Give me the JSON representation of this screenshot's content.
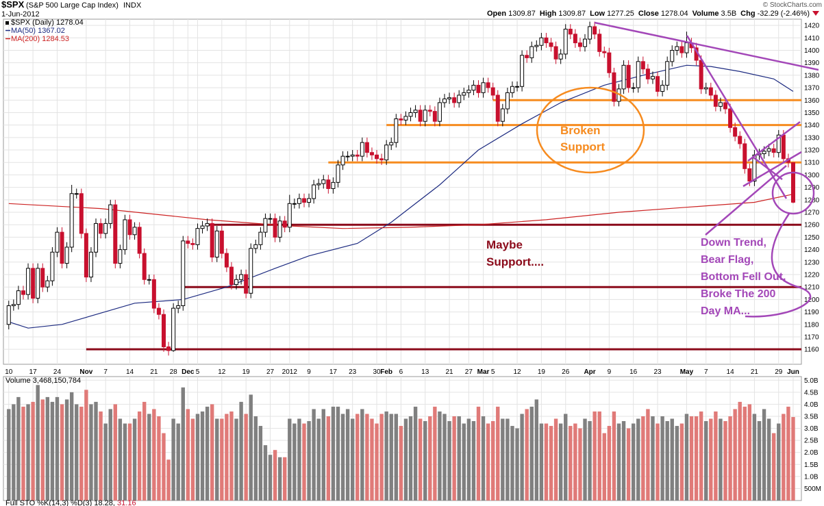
{
  "chart_data": {
    "type": "candlestick",
    "title": "$SPX",
    "subtitle": "(S&P 500 Large Cap Index)",
    "exchange": "INDX",
    "date": "1-Jun-2012",
    "credit": "© StockCharts.com",
    "quote": [
      {
        "label": "Open",
        "value": 1309.87
      },
      {
        "label": "High",
        "value": 1309.87
      },
      {
        "label": "Low",
        "value": 1277.25
      },
      {
        "label": "Close",
        "value": 1278.04
      },
      {
        "label": "Volume",
        "value": 3.5,
        "value_label": "3.5B"
      },
      {
        "label": "Chg",
        "value": -32.29,
        "value_label": "-32.29 (-2.46%)"
      }
    ],
    "price_name": "$SPX (Daily)",
    "up_color": "#000000",
    "down_color": "#c8102e",
    "xlim": [
      -1.1,
      163.7
    ],
    "ylim": [
      1148,
      1425
    ],
    "grid": true,
    "xticks": [
      {
        "value": 0,
        "label": "10"
      },
      {
        "value": 5,
        "label": "17"
      },
      {
        "value": 10,
        "label": "24"
      },
      {
        "value": 16,
        "label": "Nov"
      },
      {
        "value": 20,
        "label": "7"
      },
      {
        "value": 25,
        "label": "14"
      },
      {
        "value": 30,
        "label": "21"
      },
      {
        "value": 34,
        "label": "28"
      },
      {
        "value": 37,
        "label": "Dec"
      },
      {
        "value": 39,
        "label": "5"
      },
      {
        "value": 44,
        "label": "12"
      },
      {
        "value": 49,
        "label": "19"
      },
      {
        "value": 54,
        "label": "27"
      },
      {
        "value": 58,
        "label": "2012"
      },
      {
        "value": 62,
        "label": "9"
      },
      {
        "value": 67,
        "label": "17"
      },
      {
        "value": 71,
        "label": "23"
      },
      {
        "value": 76,
        "label": "30"
      },
      {
        "value": 78,
        "label": "Feb"
      },
      {
        "value": 81,
        "label": "6"
      },
      {
        "value": 86,
        "label": "13"
      },
      {
        "value": 91,
        "label": "21"
      },
      {
        "value": 95,
        "label": "27"
      },
      {
        "value": 98,
        "label": "Mar"
      },
      {
        "value": 100,
        "label": "5"
      },
      {
        "value": 105,
        "label": "12"
      },
      {
        "value": 110,
        "label": "19"
      },
      {
        "value": 115,
        "label": "26"
      },
      {
        "value": 120,
        "label": "Apr"
      },
      {
        "value": 124,
        "label": "9"
      },
      {
        "value": 129,
        "label": "16"
      },
      {
        "value": 134,
        "label": "23"
      },
      {
        "value": 140,
        "label": "May"
      },
      {
        "value": 144,
        "label": "7"
      },
      {
        "value": 149,
        "label": "14"
      },
      {
        "value": 154,
        "label": "21"
      },
      {
        "value": 159,
        "label": "29"
      },
      {
        "value": 162,
        "label": "Jun"
      }
    ],
    "yticks": [
      1160,
      1170,
      1180,
      1190,
      1200,
      1210,
      1220,
      1230,
      1240,
      1250,
      1260,
      1270,
      1280,
      1290,
      1300,
      1310,
      1320,
      1330,
      1340,
      1350,
      1360,
      1370,
      1380,
      1390,
      1400,
      1410,
      1420
    ],
    "open": [
      1180,
      1195,
      1196,
      1207,
      1204,
      1225,
      1201,
      1225,
      1210,
      1215,
      1238,
      1254,
      1229,
      1242,
      1285,
      1285,
      1253,
      1218,
      1238,
      1261,
      1253,
      1261,
      1276,
      1229,
      1240,
      1264,
      1252,
      1258,
      1237,
      1216,
      1216,
      1193,
      1188,
      1162,
      1159,
      1193,
      1195,
      1247,
      1245,
      1244,
      1257,
      1259,
      1261,
      1234,
      1255,
      1237,
      1226,
      1212,
      1216,
      1220,
      1205,
      1241,
      1244,
      1254,
      1265,
      1265,
      1250,
      1263,
      1258,
      1277,
      1277,
      1281,
      1278,
      1281,
      1292,
      1293,
      1296,
      1289,
      1294,
      1308,
      1315,
      1315,
      1316,
      1315,
      1326,
      1318,
      1316,
      1313,
      1312,
      1324,
      1326,
      1345,
      1344,
      1347,
      1350,
      1352,
      1343,
      1352,
      1351,
      1343,
      1358,
      1361,
      1362,
      1358,
      1364,
      1366,
      1368,
      1372,
      1366,
      1374,
      1370,
      1364,
      1343,
      1353,
      1366,
      1371,
      1371,
      1396,
      1394,
      1403,
      1404,
      1410,
      1406,
      1403,
      1393,
      1397,
      1417,
      1413,
      1406,
      1403,
      1409,
      1419,
      1413,
      1399,
      1398,
      1382,
      1359,
      1369,
      1388,
      1370,
      1370,
      1391,
      1385,
      1377,
      1379,
      1367,
      1372,
      1391,
      1400,
      1403,
      1398,
      1406,
      1402,
      1392,
      1369,
      1370,
      1364,
      1355,
      1358,
      1353,
      1338,
      1331,
      1325,
      1305,
      1295,
      1316,
      1317,
      1319,
      1321,
      1318,
      1332,
      1313,
      1309.87
    ],
    "high": [
      1199,
      1200,
      1211,
      1211,
      1229,
      1229,
      1229,
      1229,
      1219,
      1242,
      1258,
      1258,
      1246,
      1292,
      1289,
      1289,
      1257,
      1242,
      1265,
      1265,
      1265,
      1280,
      1280,
      1244,
      1268,
      1268,
      1262,
      1262,
      1241,
      1220,
      1220,
      1197,
      1192,
      1166,
      1197,
      1199,
      1251,
      1251,
      1249,
      1261,
      1263,
      1265,
      1265,
      1259,
      1259,
      1241,
      1230,
      1220,
      1224,
      1224,
      1245,
      1248,
      1258,
      1269,
      1269,
      1269,
      1267,
      1267,
      1284,
      1281,
      1285,
      1285,
      1285,
      1296,
      1297,
      1300,
      1300,
      1298,
      1312,
      1319,
      1319,
      1320,
      1320,
      1330,
      1330,
      1322,
      1320,
      1317,
      1328,
      1330,
      1349,
      1349,
      1351,
      1354,
      1356,
      1356,
      1356,
      1356,
      1355,
      1362,
      1365,
      1366,
      1366,
      1368,
      1370,
      1372,
      1376,
      1376,
      1378,
      1378,
      1374,
      1368,
      1357,
      1370,
      1375,
      1375,
      1400,
      1400,
      1407,
      1408,
      1414,
      1414,
      1410,
      1407,
      1401,
      1421,
      1421,
      1417,
      1410,
      1413,
      1423,
      1423,
      1417,
      1403,
      1402,
      1386,
      1373,
      1392,
      1392,
      1374,
      1395,
      1395,
      1389,
      1383,
      1383,
      1376,
      1395,
      1404,
      1407,
      1407,
      1415,
      1410,
      1406,
      1396,
      1374,
      1374,
      1368,
      1362,
      1362,
      1357,
      1342,
      1335,
      1329,
      1309,
      1320,
      1321,
      1323,
      1325,
      1325,
      1336,
      1336,
      1317,
      1309.87
    ],
    "low": [
      1176,
      1191,
      1192,
      1200,
      1200,
      1197,
      1197,
      1206,
      1206,
      1211,
      1234,
      1225,
      1225,
      1238,
      1281,
      1249,
      1214,
      1214,
      1234,
      1249,
      1249,
      1257,
      1225,
      1225,
      1236,
      1248,
      1248,
      1233,
      1212,
      1212,
      1189,
      1184,
      1158,
      1155,
      1158,
      1189,
      1191,
      1241,
      1240,
      1240,
      1253,
      1255,
      1230,
      1230,
      1233,
      1222,
      1208,
      1208,
      1212,
      1201,
      1201,
      1237,
      1240,
      1250,
      1261,
      1246,
      1246,
      1254,
      1254,
      1273,
      1273,
      1274,
      1274,
      1277,
      1288,
      1289,
      1285,
      1285,
      1290,
      1304,
      1311,
      1311,
      1311,
      1311,
      1314,
      1312,
      1309,
      1308,
      1308,
      1320,
      1322,
      1340,
      1340,
      1343,
      1346,
      1339,
      1339,
      1347,
      1339,
      1339,
      1354,
      1357,
      1354,
      1354,
      1360,
      1362,
      1364,
      1362,
      1362,
      1366,
      1360,
      1339,
      1339,
      1349,
      1362,
      1367,
      1367,
      1390,
      1390,
      1399,
      1400,
      1402,
      1399,
      1389,
      1389,
      1393,
      1409,
      1402,
      1399,
      1399,
      1405,
      1409,
      1395,
      1394,
      1378,
      1355,
      1355,
      1365,
      1366,
      1366,
      1366,
      1381,
      1373,
      1373,
      1363,
      1363,
      1368,
      1387,
      1396,
      1394,
      1394,
      1398,
      1388,
      1365,
      1365,
      1360,
      1351,
      1351,
      1349,
      1334,
      1327,
      1321,
      1301,
      1291,
      1291,
      1312,
      1313,
      1315,
      1314,
      1314,
      1309,
      1306,
      1277.25
    ],
    "close": [
      1195,
      1196,
      1207,
      1204,
      1225,
      1201,
      1225,
      1210,
      1215,
      1238,
      1254,
      1229,
      1242,
      1285,
      1285,
      1253,
      1218,
      1238,
      1261,
      1253,
      1261,
      1276,
      1229,
      1240,
      1264,
      1252,
      1258,
      1237,
      1216,
      1216,
      1193,
      1188,
      1162,
      1159,
      1193,
      1195,
      1247,
      1245,
      1244,
      1257,
      1259,
      1261,
      1234,
      1255,
      1237,
      1226,
      1212,
      1216,
      1220,
      1205,
      1241,
      1244,
      1254,
      1265,
      1265,
      1250,
      1263,
      1258,
      1277,
      1277,
      1281,
      1278,
      1281,
      1292,
      1293,
      1296,
      1289,
      1294,
      1308,
      1315,
      1315,
      1316,
      1315,
      1326,
      1318,
      1316,
      1313,
      1312,
      1324,
      1326,
      1345,
      1344,
      1347,
      1350,
      1352,
      1343,
      1352,
      1351,
      1343,
      1358,
      1361,
      1362,
      1358,
      1364,
      1366,
      1368,
      1372,
      1366,
      1374,
      1370,
      1364,
      1343,
      1353,
      1366,
      1371,
      1371,
      1396,
      1394,
      1403,
      1404,
      1410,
      1406,
      1403,
      1393,
      1397,
      1417,
      1413,
      1406,
      1403,
      1409,
      1419,
      1413,
      1399,
      1398,
      1382,
      1359,
      1369,
      1388,
      1370,
      1370,
      1391,
      1385,
      1377,
      1379,
      1367,
      1372,
      1391,
      1400,
      1403,
      1398,
      1406,
      1402,
      1392,
      1369,
      1370,
      1364,
      1355,
      1358,
      1353,
      1338,
      1331,
      1325,
      1305,
      1295,
      1316,
      1317,
      1319,
      1321,
      1318,
      1332,
      1313,
      1310,
      1278.04
    ],
    "series": [
      {
        "name": "MA(50)",
        "color": "#1c2a80",
        "x": [
          0,
          4,
          11,
          26,
          36,
          45,
          55,
          62,
          72,
          79,
          89,
          97,
          106,
          114,
          123,
          131,
          140,
          145,
          151,
          158,
          162
        ],
        "values": [
          1182,
          1177,
          1180,
          1197,
          1200,
          1210,
          1225,
          1235,
          1245,
          1262,
          1292,
          1320,
          1341,
          1358,
          1372,
          1380,
          1388,
          1387,
          1383,
          1377,
          1367.02
        ]
      },
      {
        "name": "MA(200)",
        "color": "#cc2222",
        "x": [
          0,
          19,
          41,
          58,
          69,
          83,
          97,
          111,
          126,
          140,
          154,
          162
        ],
        "values": [
          1277,
          1273,
          1264,
          1259,
          1257,
          1258,
          1260,
          1264,
          1270,
          1274,
          1278,
          1284.53
        ]
      }
    ],
    "hlines": [
      {
        "value": 1360,
        "start": 100,
        "color": "#f68b1f"
      },
      {
        "value": 1340,
        "start": 78,
        "color": "#f68b1f"
      },
      {
        "value": 1310,
        "start": 66,
        "color": "#f68b1f"
      },
      {
        "value": 1260,
        "start": 41,
        "color": "#8b0a1a"
      },
      {
        "value": 1210,
        "start": 36,
        "color": "#8b0a1a"
      },
      {
        "value": 1160,
        "start": 16,
        "color": "#8b0a1a"
      }
    ],
    "broken_support": [
      "Broken",
      "Support"
    ],
    "maybe_support": [
      "Maybe",
      "Support...."
    ],
    "comment": [
      "Down Trend,",
      "Bear Flag,",
      "Bottom Fell Out,",
      "Broke The 200",
      "Day MA..."
    ],
    "volume": {
      "name": "Volume",
      "last_label": "3,468,150,784",
      "up_color": "#808080",
      "down_color": "#e07a78",
      "ylim": [
        0,
        5.15
      ],
      "yticks": [
        {
          "value": 5,
          "label": "5.0B"
        },
        {
          "value": 4.5,
          "label": "4.5B"
        },
        {
          "value": 4,
          "label": "4.0B"
        },
        {
          "value": 3.5,
          "label": "3.5B"
        },
        {
          "value": 3,
          "label": "3.0B"
        },
        {
          "value": 2.5,
          "label": "2.5B"
        },
        {
          "value": 2,
          "label": "2.0B"
        },
        {
          "value": 1.5,
          "label": "1.5B"
        },
        {
          "value": 1,
          "label": "1.0B"
        },
        {
          "value": 0.5,
          "label": "500M"
        }
      ],
      "values": [
        3.8,
        4.0,
        4.3,
        3.9,
        4.0,
        4.1,
        4.8,
        4.2,
        4.3,
        4.1,
        4.3,
        4.0,
        4.2,
        4.5,
        4.0,
        3.9,
        4.6,
        4.0,
        4.1,
        3.7,
        3.2,
        3.8,
        4.0,
        3.4,
        3.2,
        3.2,
        3.4,
        3.7,
        4.1,
        3.6,
        3.8,
        3.5,
        2.8,
        1.7,
        3.4,
        3.2,
        4.7,
        3.8,
        3.4,
        3.6,
        3.7,
        3.9,
        4.0,
        3.4,
        3.4,
        3.6,
        3.7,
        3.4,
        4.1,
        3.6,
        4.4,
        3.5,
        3.1,
        2.3,
        1.9,
        2.1,
        1.8,
        1.8,
        3.4,
        3.2,
        3.4,
        3.2,
        3.3,
        3.8,
        3.4,
        3.8,
        3.5,
        3.9,
        3.9,
        3.6,
        3.8,
        3.4,
        3.6,
        3.8,
        3.6,
        3.4,
        3.2,
        3.6,
        3.7,
        3.6,
        3.6,
        3.1,
        3.4,
        3.5,
        3.9,
        3.4,
        3.3,
        3.5,
        3.9,
        3.7,
        3.6,
        3.3,
        3.5,
        3.5,
        3.2,
        3.4,
        3.3,
        3.9,
        3.5,
        3.2,
        3.3,
        3.9,
        3.4,
        3.4,
        3.1,
        3.0,
        3.6,
        3.8,
        3.9,
        4.2,
        3.2,
        3.2,
        3.1,
        3.4,
        3.2,
        3.6,
        3.1,
        3.2,
        3.0,
        3.4,
        3.3,
        3.7,
        3.7,
        2.8,
        3.1,
        3.7,
        3.2,
        3.3,
        3.0,
        3.2,
        3.4,
        3.5,
        3.8,
        3.5,
        3.2,
        3.5,
        3.3,
        3.4,
        3.1,
        3.2,
        3.6,
        3.5,
        3.5,
        3.7,
        3.3,
        3.4,
        3.7,
        3.4,
        3.3,
        3.5,
        3.8,
        4.1,
        3.9,
        4.0,
        3.6,
        3.3,
        3.8,
        3.4,
        2.8,
        3.2,
        3.6,
        3.9,
        3.47
      ]
    },
    "sto_label": "Full STO %K(14,3) %D(3) 18.28,",
    "sto_d": 31.16
  }
}
